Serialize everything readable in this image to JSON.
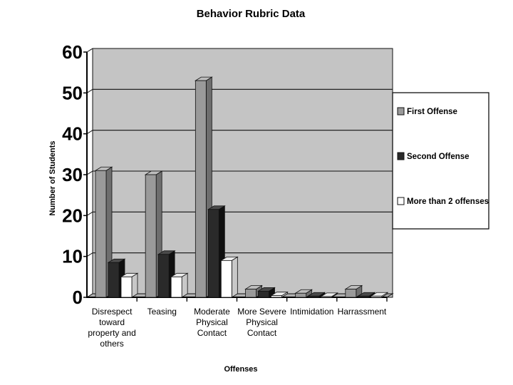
{
  "chart_data": {
    "type": "bar",
    "title": "Behavior Rubric Data",
    "xlabel": "Offenses",
    "ylabel": "Number of Students",
    "ylim": [
      0,
      60
    ],
    "yticks": [
      0,
      10,
      20,
      30,
      40,
      50,
      60
    ],
    "grid": true,
    "legend_position": "right",
    "categories": [
      [
        "Disrespect",
        "toward",
        "property and",
        "others"
      ],
      [
        "Teasing"
      ],
      [
        "Moderate",
        "Physical",
        "Contact"
      ],
      [
        "More Severe",
        "Physical",
        "Contact"
      ],
      [
        "Intimidation"
      ],
      [
        "Harrassment"
      ]
    ],
    "series": [
      {
        "name": "First Offense",
        "values": [
          31,
          30,
          53,
          2,
          1,
          2
        ],
        "color": "#9a9a9a"
      },
      {
        "name": "Second Offense",
        "values": [
          8.5,
          10.5,
          21.5,
          1.5,
          0.3,
          0.3
        ],
        "color": "#2a2a2a"
      },
      {
        "name": "More than 2 offenses",
        "values": [
          5,
          5,
          9,
          0.4,
          0.2,
          0.3
        ],
        "color": "#ffffff"
      }
    ],
    "colors": {
      "plot_background": "#c4c4c4",
      "floor": "#b0b0b0",
      "gridline": "#111111"
    }
  }
}
